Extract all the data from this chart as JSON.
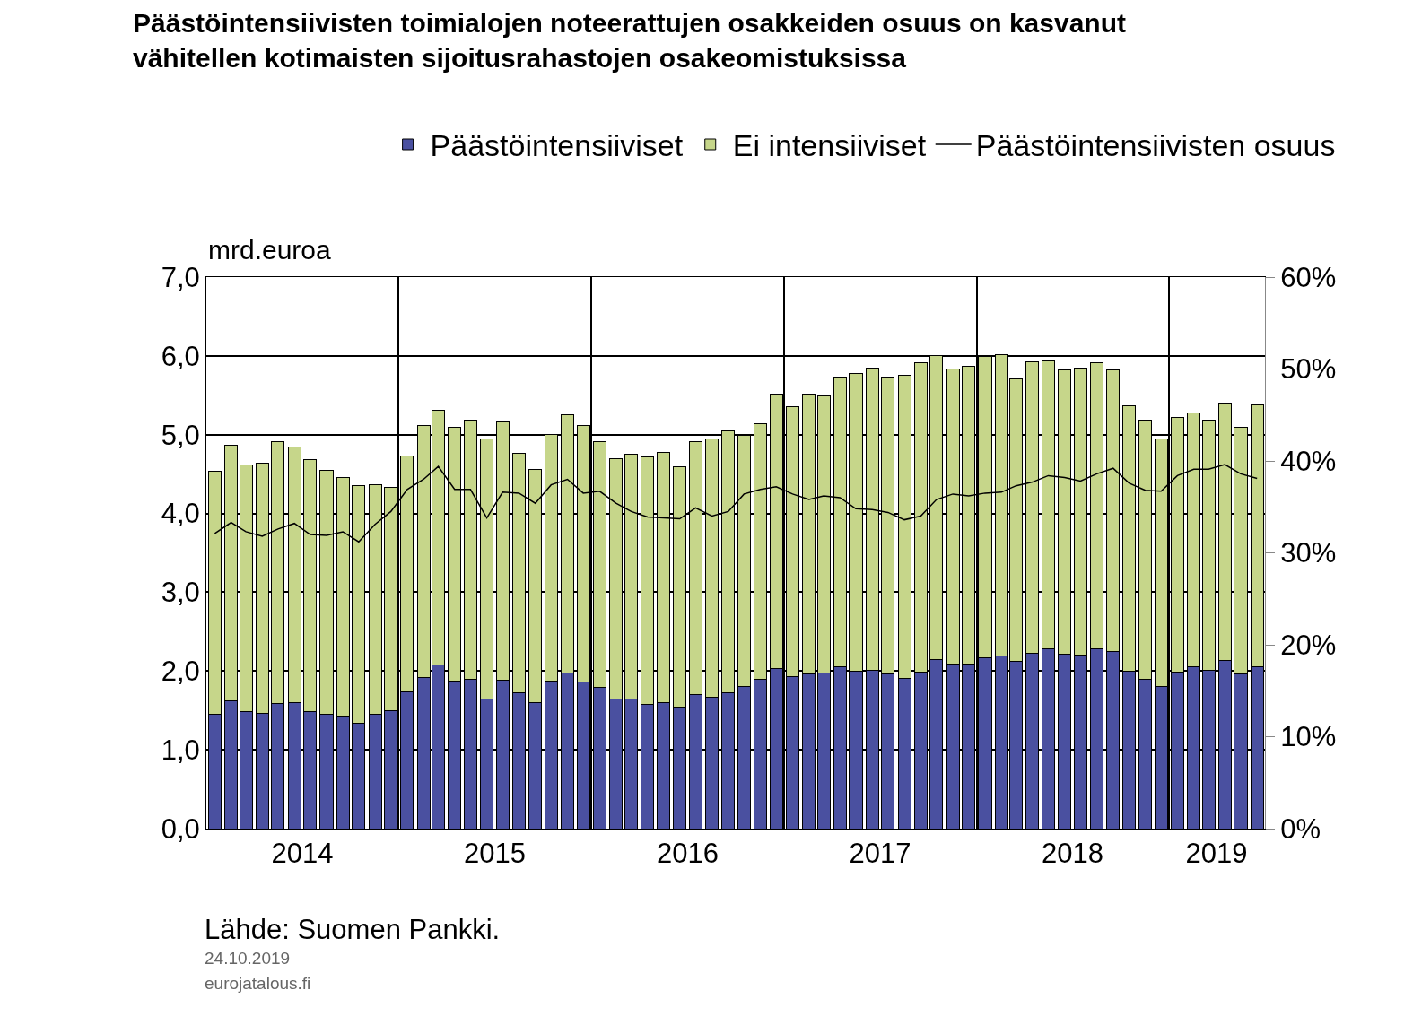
{
  "chart_data": {
    "type": "bar",
    "stacked": true,
    "title": "Päästöintensiivisten toimialojen noteerattujen osakkeiden osuus on kasvanut vähitellen kotimaisten sijoitusrahastojen osakeomistuksissa",
    "ylabel": "mrd.euroa",
    "x": [
      "2014-01",
      "2014-02",
      "2014-03",
      "2014-04",
      "2014-05",
      "2014-06",
      "2014-07",
      "2014-08",
      "2014-09",
      "2014-10",
      "2014-11",
      "2014-12",
      "2015-01",
      "2015-02",
      "2015-03",
      "2015-04",
      "2015-05",
      "2015-06",
      "2015-07",
      "2015-08",
      "2015-09",
      "2015-10",
      "2015-11",
      "2015-12",
      "2016-01",
      "2016-02",
      "2016-03",
      "2016-04",
      "2016-05",
      "2016-06",
      "2016-07",
      "2016-08",
      "2016-09",
      "2016-10",
      "2016-11",
      "2016-12",
      "2017-01",
      "2017-02",
      "2017-03",
      "2017-04",
      "2017-05",
      "2017-06",
      "2017-07",
      "2017-08",
      "2017-09",
      "2017-10",
      "2017-11",
      "2017-12",
      "2018-01",
      "2018-02",
      "2018-03",
      "2018-04",
      "2018-05",
      "2018-06",
      "2018-07",
      "2018-08",
      "2018-09",
      "2018-10",
      "2018-11",
      "2018-12",
      "2019-01",
      "2019-02",
      "2019-03",
      "2019-04",
      "2019-05",
      "2019-06"
    ],
    "series": [
      {
        "name": "Päästöintensiiviset",
        "color": "#4a50a0",
        "values": [
          1.45,
          1.62,
          1.48,
          1.46,
          1.59,
          1.6,
          1.49,
          1.45,
          1.43,
          1.34,
          1.45,
          1.5,
          1.74,
          1.92,
          2.08,
          1.87,
          1.9,
          1.65,
          1.88,
          1.73,
          1.6,
          1.87,
          1.98,
          1.86,
          1.79,
          1.65,
          1.65,
          1.58,
          1.6,
          1.54,
          1.7,
          1.67,
          1.73,
          1.8,
          1.89,
          2.03,
          1.93,
          1.96,
          1.98,
          2.05,
          2.0,
          2.01,
          1.96,
          1.91,
          1.99,
          2.14,
          2.09,
          2.09,
          2.17,
          2.19,
          2.12,
          2.22,
          2.28,
          2.21,
          2.2,
          2.28,
          2.25,
          2.0,
          1.89,
          1.8,
          1.99,
          2.05,
          2.01,
          2.13,
          1.96,
          2.05
        ]
      },
      {
        "name": "Ei intensiiviset",
        "color": "#c6d68a",
        "values": [
          3.09,
          3.25,
          3.14,
          3.18,
          3.32,
          3.24,
          3.19,
          3.1,
          3.03,
          3.01,
          2.92,
          2.83,
          2.99,
          3.2,
          3.23,
          3.22,
          3.28,
          3.29,
          3.28,
          3.03,
          2.96,
          3.13,
          3.27,
          3.26,
          3.12,
          3.05,
          3.1,
          3.14,
          3.18,
          3.05,
          3.21,
          3.27,
          3.32,
          3.19,
          3.25,
          3.48,
          3.43,
          3.55,
          3.51,
          3.68,
          3.78,
          3.83,
          3.77,
          3.84,
          3.92,
          3.86,
          3.74,
          3.78,
          3.82,
          3.82,
          3.59,
          3.71,
          3.66,
          3.61,
          3.65,
          3.63,
          3.57,
          3.37,
          3.29,
          3.15,
          3.23,
          3.22,
          3.18,
          3.27,
          3.13,
          3.33
        ]
      },
      {
        "name": "Päästöintensiivisten osuus",
        "type": "line",
        "axis": "y2",
        "color": "#000000",
        "values": [
          32.1,
          33.3,
          32.3,
          31.8,
          32.6,
          33.2,
          32.0,
          31.9,
          32.3,
          31.2,
          33.1,
          34.5,
          36.9,
          38.0,
          39.4,
          36.9,
          36.9,
          33.8,
          36.6,
          36.5,
          35.4,
          37.4,
          38.0,
          36.5,
          36.7,
          35.4,
          34.5,
          33.9,
          33.8,
          33.7,
          34.9,
          34.0,
          34.5,
          36.4,
          36.9,
          37.2,
          36.4,
          35.8,
          36.2,
          36.0,
          34.8,
          34.7,
          34.4,
          33.6,
          34.0,
          35.8,
          36.4,
          36.2,
          36.5,
          36.6,
          37.3,
          37.7,
          38.4,
          38.2,
          37.8,
          38.6,
          39.2,
          37.6,
          36.8,
          36.7,
          38.4,
          39.1,
          39.1,
          39.6,
          38.6,
          38.1
        ]
      }
    ],
    "xlim": [
      "2013-12-16",
      "2019-06-16"
    ],
    "xticks": [
      {
        "value": "2014-06-16",
        "label": "2014"
      },
      {
        "value": "2015-06-16",
        "label": "2015"
      },
      {
        "value": "2016-06-16",
        "label": "2016"
      },
      {
        "value": "2017-06-16",
        "label": "2017"
      },
      {
        "value": "2018-06-16",
        "label": "2018"
      },
      {
        "value": "2019-03-16",
        "label": "2019"
      },
      {
        "value": "2014-12-16",
        "label": null
      },
      {
        "value": "2015-12-16",
        "label": null
      },
      {
        "value": "2016-12-16",
        "label": null
      },
      {
        "value": "2017-12-16",
        "label": null
      },
      {
        "value": "2018-12-16",
        "label": null
      }
    ],
    "ylim": [
      0,
      7
    ],
    "yticks": [
      {
        "value": 0,
        "label": "0,0"
      },
      {
        "value": 1,
        "label": "1,0"
      },
      {
        "value": 2,
        "label": "2,0"
      },
      {
        "value": 3,
        "label": "3,0"
      },
      {
        "value": 4,
        "label": "4,0"
      },
      {
        "value": 5,
        "label": "5,0"
      },
      {
        "value": 6,
        "label": "6,0"
      },
      {
        "value": 7,
        "label": "7,0"
      }
    ],
    "y2lim": [
      0,
      60
    ],
    "y2ticks": [
      {
        "value": 0,
        "label": "0%"
      },
      {
        "value": 10,
        "label": "10%"
      },
      {
        "value": 20,
        "label": "20%"
      },
      {
        "value": 30,
        "label": "30%"
      },
      {
        "value": 40,
        "label": "40%"
      },
      {
        "value": 50,
        "label": "50%"
      },
      {
        "value": 60,
        "label": "60%"
      }
    ],
    "grid": true,
    "legend": "top",
    "annotations": [
      "Lähde: Suomen Pankki.",
      "24.10.2019",
      "eurojatalous.fi"
    ]
  }
}
